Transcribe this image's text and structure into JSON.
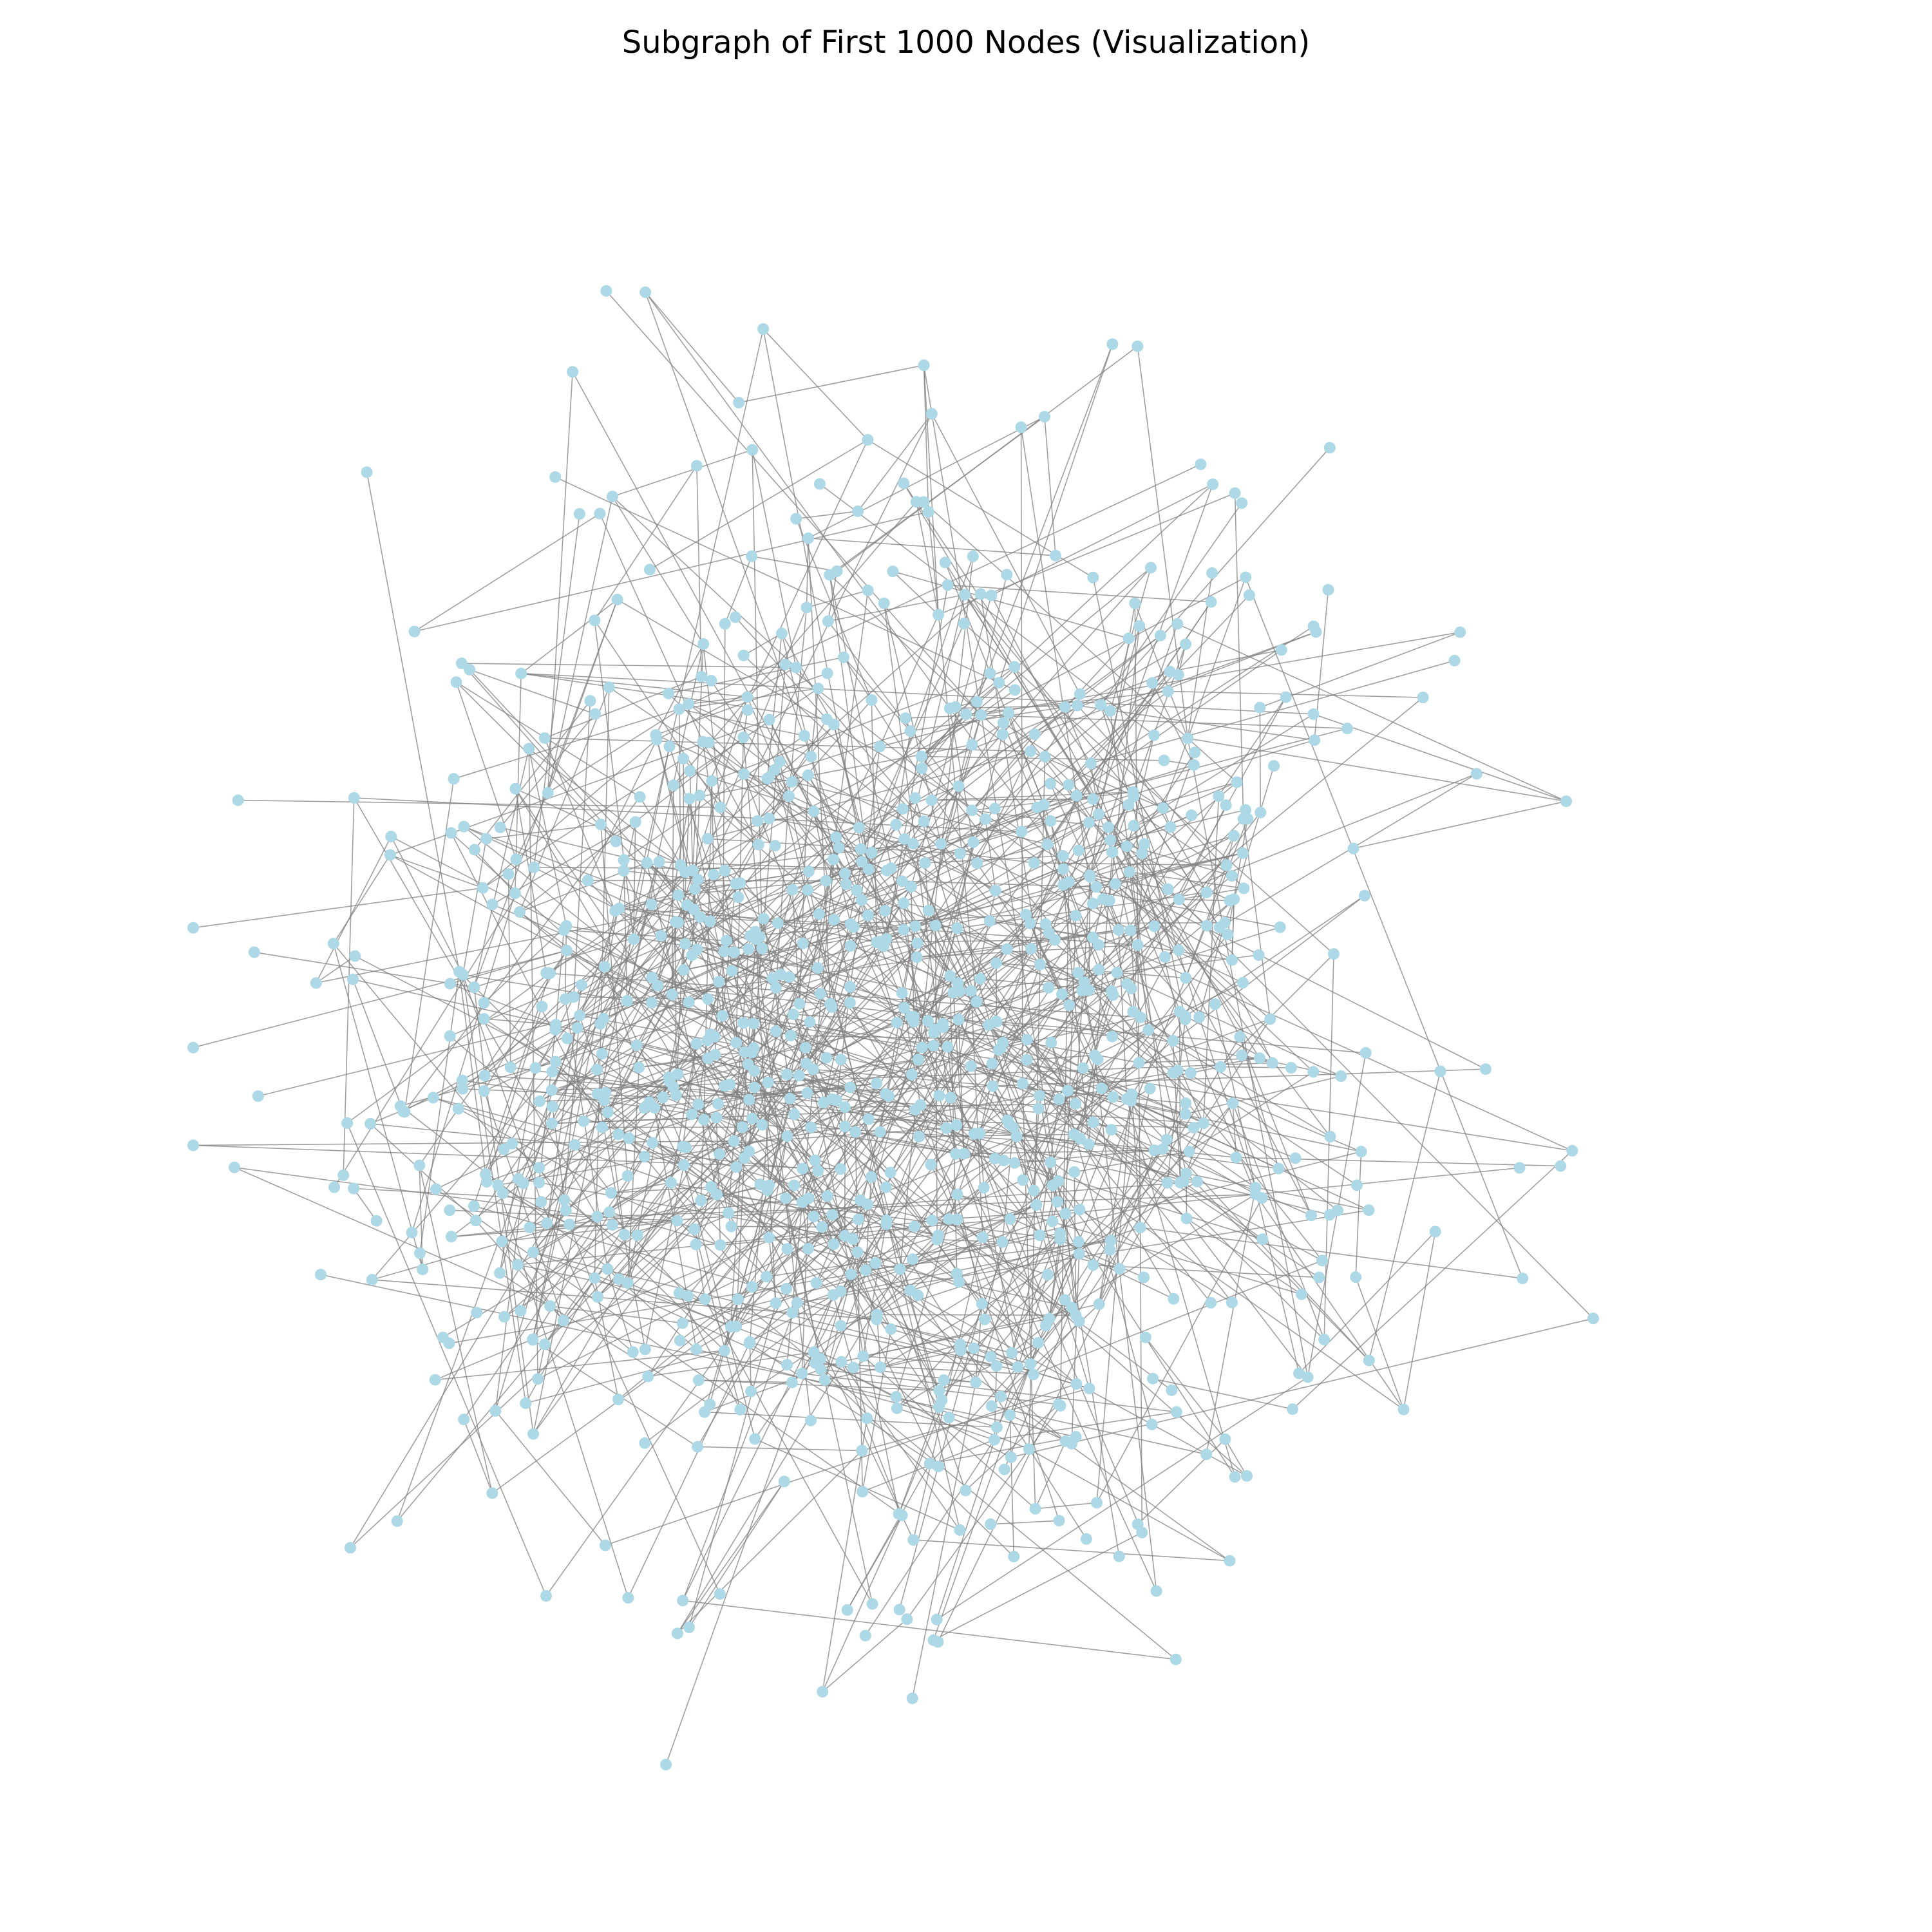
{
  "figure": {
    "title": "Subgraph of First 1000 Nodes (Visualization)"
  },
  "graph": {
    "node_count": 1000,
    "node_color": "#add8e6",
    "edge_color": "#808080",
    "background": "#ffffff",
    "labels_shown": false,
    "layout": "force-directed ring-like cluster"
  }
}
